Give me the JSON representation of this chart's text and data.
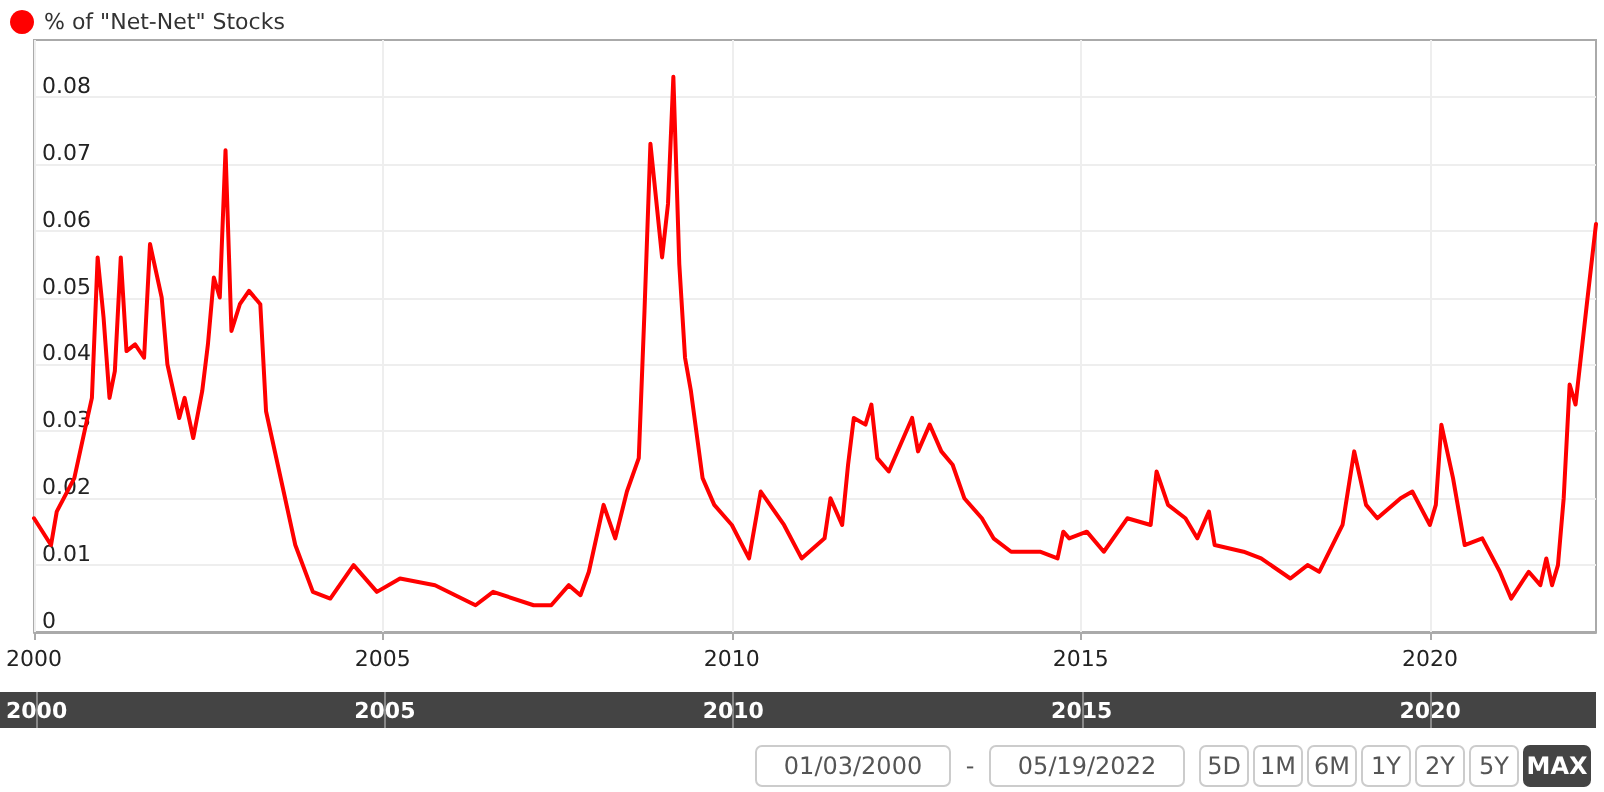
{
  "chart_data": {
    "type": "line",
    "legend": "top left",
    "grid": true,
    "marker": "none",
    "line_style": "solid",
    "x": [
      "2000-01-03",
      "2000-04-01",
      "2000-05-01",
      "2000-08-01",
      "2000-10-01",
      "2000-11-01",
      "2000-12-01",
      "2001-01-01",
      "2001-02-01",
      "2001-03-01",
      "2001-04-01",
      "2001-05-01",
      "2001-06-15",
      "2001-08-01",
      "2001-09-01",
      "2001-11-01",
      "2001-12-01",
      "2002-02-01",
      "2002-03-01",
      "2002-04-15",
      "2002-06-01",
      "2002-07-01",
      "2002-08-01",
      "2002-09-01",
      "2002-10-01",
      "2002-11-01",
      "2002-12-15",
      "2003-02-01",
      "2003-04-01",
      "2003-05-01",
      "2003-08-01",
      "2003-10-01",
      "2004-01-01",
      "2004-04-01",
      "2004-08-01",
      "2004-12-01",
      "2005-04-01",
      "2005-10-01",
      "2006-05-01",
      "2006-08-01",
      "2007-03-01",
      "2007-06-01",
      "2007-09-01",
      "2007-11-01",
      "2007-12-15",
      "2008-03-01",
      "2008-05-01",
      "2008-07-01",
      "2008-09-01",
      "2008-10-01",
      "2008-11-01",
      "2009-01-01",
      "2009-02-01",
      "2009-03-01",
      "2009-04-01",
      "2009-05-01",
      "2009-06-01",
      "2009-08-01",
      "2009-10-01",
      "2010-01-01",
      "2010-04-01",
      "2010-06-01",
      "2010-10-01",
      "2011-01-01",
      "2011-05-01",
      "2011-06-01",
      "2011-08-01",
      "2011-09-01",
      "2011-10-01",
      "2011-12-01",
      "2012-01-01",
      "2012-02-01",
      "2012-04-01",
      "2012-06-01",
      "2012-08-01",
      "2012-09-01",
      "2012-11-01",
      "2013-01-01",
      "2013-03-01",
      "2013-05-01",
      "2013-08-01",
      "2013-10-01",
      "2014-01-01",
      "2014-06-01",
      "2014-09-01",
      "2014-10-01",
      "2014-11-01",
      "2015-02-01",
      "2015-05-01",
      "2015-09-01",
      "2016-01-01",
      "2016-02-01",
      "2016-04-01",
      "2016-07-01",
      "2016-09-01",
      "2016-11-01",
      "2016-12-01",
      "2017-05-01",
      "2017-08-01",
      "2018-01-01",
      "2018-04-01",
      "2018-06-01",
      "2018-10-01",
      "2018-12-01",
      "2019-02-01",
      "2019-04-01",
      "2019-08-01",
      "2019-10-01",
      "2020-01-01",
      "2020-02-01",
      "2020-03-01",
      "2020-05-01",
      "2020-07-01",
      "2020-10-01",
      "2021-01-01",
      "2021-03-01",
      "2021-06-01",
      "2021-08-01",
      "2021-09-01",
      "2021-10-01",
      "2021-11-01",
      "2021-12-01",
      "2022-01-01",
      "2022-02-01",
      "2022-04-01",
      "2022-05-19"
    ],
    "series": [
      {
        "name": "% of \"Net-Net\" Stocks",
        "color": "#ff0000",
        "values": [
          0.017,
          0.013,
          0.018,
          0.023,
          0.031,
          0.035,
          0.056,
          0.047,
          0.035,
          0.039,
          0.056,
          0.042,
          0.043,
          0.041,
          0.058,
          0.05,
          0.04,
          0.032,
          0.035,
          0.029,
          0.036,
          0.043,
          0.053,
          0.05,
          0.072,
          0.045,
          0.049,
          0.051,
          0.049,
          0.033,
          0.021,
          0.013,
          0.006,
          0.005,
          0.01,
          0.006,
          0.008,
          0.007,
          0.004,
          0.006,
          0.004,
          0.004,
          0.007,
          0.0055,
          0.009,
          0.019,
          0.014,
          0.021,
          0.026,
          0.048,
          0.073,
          0.056,
          0.064,
          0.083,
          0.055,
          0.041,
          0.036,
          0.023,
          0.019,
          0.016,
          0.011,
          0.021,
          0.016,
          0.011,
          0.014,
          0.02,
          0.016,
          0.025,
          0.032,
          0.031,
          0.034,
          0.026,
          0.024,
          0.028,
          0.032,
          0.027,
          0.031,
          0.027,
          0.025,
          0.02,
          0.017,
          0.014,
          0.012,
          0.012,
          0.011,
          0.015,
          0.014,
          0.015,
          0.012,
          0.017,
          0.016,
          0.024,
          0.019,
          0.017,
          0.014,
          0.018,
          0.013,
          0.012,
          0.011,
          0.008,
          0.01,
          0.009,
          0.016,
          0.027,
          0.019,
          0.017,
          0.02,
          0.021,
          0.016,
          0.019,
          0.031,
          0.023,
          0.013,
          0.014,
          0.009,
          0.005,
          0.009,
          0.007,
          0.011,
          0.007,
          0.01,
          0.02,
          0.037,
          0.034,
          0.049,
          0.061
        ]
      }
    ],
    "xlim": [
      "2000-01-03",
      "2022-05-19"
    ],
    "xticks": [
      {
        "value": "2000-01-03",
        "label": "2000"
      },
      {
        "value": "2005",
        "label": "2005"
      },
      {
        "value": "2010",
        "label": "2010"
      },
      {
        "value": "2015",
        "label": "2015"
      },
      {
        "value": "2020",
        "label": "2020"
      }
    ],
    "ylim": [
      0,
      0.0885
    ],
    "yticks": [
      0,
      0.01,
      0.02,
      0.03,
      0.04,
      0.05,
      0.06,
      0.07,
      0.08
    ],
    "annotations": [
      "01/03/2000",
      "-",
      "05/19/2022",
      "5D",
      "1M",
      "6M",
      "1Y",
      "2Y",
      "5Y",
      "MAX"
    ]
  }
}
